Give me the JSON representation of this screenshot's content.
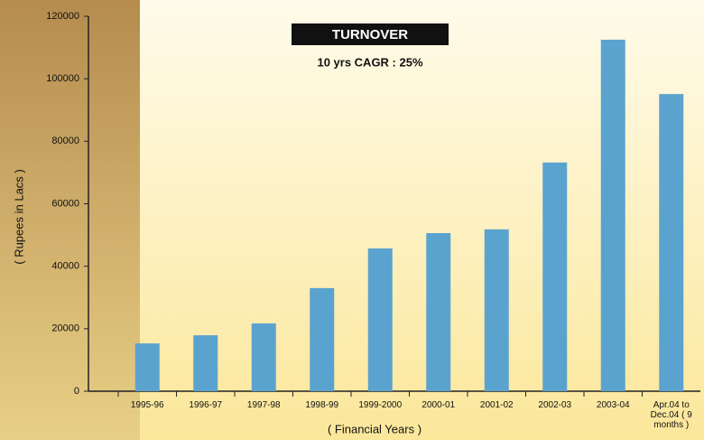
{
  "chart_data": {
    "type": "bar",
    "title": "TURNOVER",
    "subtitle": "10 yrs CAGR : 25%",
    "y_label": "( Rupees in Lacs )",
    "x_label": "( Financial Years )",
    "categories": [
      "1995-96",
      "1996-97",
      "1997-98",
      "1998-99",
      "1999-2000",
      "2000-01",
      "2001-02",
      "2002-03",
      "2003-04",
      "Apr.04 to Dec.04 ( 9 months )"
    ],
    "values": [
      15300,
      17900,
      21700,
      33000,
      45700,
      50600,
      51800,
      73200,
      112500,
      95100
    ],
    "color": "#5ba3cf",
    "ylim": [
      0,
      120000
    ],
    "yticks": [
      0,
      20000,
      40000,
      60000,
      80000,
      100000,
      120000
    ],
    "grid": false
  }
}
